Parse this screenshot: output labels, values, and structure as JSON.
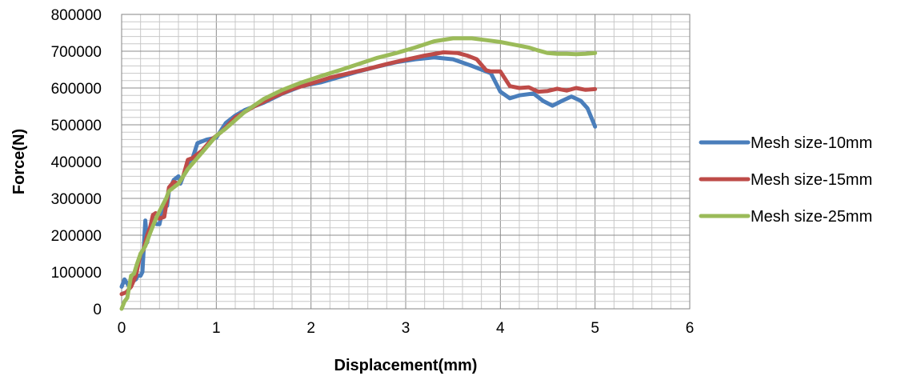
{
  "chart_data": {
    "type": "line",
    "xlabel": "Displacement(mm)",
    "ylabel": "Force(N)",
    "xlim": [
      0,
      6
    ],
    "ylim": [
      0,
      800000
    ],
    "x_ticks": [
      "0",
      "1",
      "2",
      "3",
      "4",
      "5",
      "6"
    ],
    "y_ticks": [
      "0",
      "100000",
      "200000",
      "300000",
      "400000",
      "500000",
      "600000",
      "700000",
      "800000"
    ],
    "grid": true,
    "legend": "right",
    "series": [
      {
        "name": "Mesh size-10mm",
        "color": "#4a7ebb",
        "x": [
          0,
          0.03,
          0.08,
          0.12,
          0.15,
          0.17,
          0.2,
          0.22,
          0.25,
          0.27,
          0.3,
          0.33,
          0.37,
          0.4,
          0.44,
          0.48,
          0.5,
          0.55,
          0.6,
          0.62,
          0.65,
          0.7,
          0.75,
          0.8,
          0.85,
          0.9,
          1.0,
          1.1,
          1.2,
          1.3,
          1.5,
          1.7,
          1.9,
          2.1,
          2.3,
          2.5,
          2.7,
          2.9,
          3.1,
          3.3,
          3.5,
          3.7,
          3.8,
          3.9,
          4.0,
          4.1,
          4.2,
          4.35,
          4.45,
          4.55,
          4.65,
          4.75,
          4.85,
          4.92,
          5.0
        ],
        "y": [
          60000,
          80000,
          60000,
          75000,
          80000,
          90000,
          90000,
          100000,
          240000,
          180000,
          220000,
          240000,
          230000,
          230000,
          280000,
          280000,
          320000,
          350000,
          360000,
          340000,
          360000,
          380000,
          410000,
          450000,
          455000,
          460000,
          465000,
          505000,
          525000,
          540000,
          560000,
          585000,
          605000,
          615000,
          630000,
          645000,
          658000,
          670000,
          678000,
          683000,
          678000,
          660000,
          650000,
          640000,
          590000,
          572000,
          580000,
          585000,
          565000,
          552000,
          565000,
          577000,
          565000,
          545000,
          495000
        ]
      },
      {
        "name": "Mesh size-15mm",
        "color": "#be4b48",
        "x": [
          0,
          0.05,
          0.1,
          0.15,
          0.2,
          0.23,
          0.27,
          0.3,
          0.33,
          0.36,
          0.4,
          0.45,
          0.5,
          0.55,
          0.6,
          0.65,
          0.7,
          0.75,
          0.85,
          0.95,
          1.05,
          1.2,
          1.4,
          1.6,
          1.8,
          2.0,
          2.2,
          2.4,
          2.6,
          2.8,
          3.0,
          3.2,
          3.4,
          3.55,
          3.65,
          3.75,
          3.85,
          3.9,
          4.0,
          4.1,
          4.2,
          4.3,
          4.4,
          4.5,
          4.6,
          4.7,
          4.8,
          4.9,
          5.0
        ],
        "y": [
          40000,
          45000,
          60000,
          90000,
          150000,
          160000,
          200000,
          220000,
          255000,
          260000,
          245000,
          250000,
          330000,
          345000,
          340000,
          360000,
          405000,
          410000,
          430000,
          460000,
          480000,
          520000,
          550000,
          575000,
          597000,
          612000,
          628000,
          640000,
          652000,
          665000,
          677000,
          688000,
          697000,
          695000,
          688000,
          678000,
          648000,
          645000,
          645000,
          605000,
          600000,
          602000,
          590000,
          592000,
          598000,
          593000,
          600000,
          595000,
          597000
        ]
      },
      {
        "name": "Mesh size-25mm",
        "color": "#9bbb59",
        "x": [
          0,
          0.03,
          0.06,
          0.1,
          0.13,
          0.16,
          0.2,
          0.25,
          0.3,
          0.33,
          0.37,
          0.42,
          0.47,
          0.5,
          0.55,
          0.6,
          0.65,
          0.7,
          0.8,
          0.9,
          1.0,
          1.1,
          1.3,
          1.5,
          1.7,
          1.9,
          2.1,
          2.3,
          2.5,
          2.7,
          2.9,
          3.1,
          3.3,
          3.5,
          3.7,
          3.85,
          4.0,
          4.1,
          4.2,
          4.3,
          4.4,
          4.5,
          4.6,
          4.7,
          4.8,
          4.9,
          5.0
        ],
        "y": [
          0,
          20000,
          30000,
          90000,
          95000,
          120000,
          150000,
          170000,
          205000,
          225000,
          250000,
          275000,
          300000,
          320000,
          330000,
          340000,
          360000,
          380000,
          410000,
          440000,
          470000,
          490000,
          535000,
          570000,
          595000,
          615000,
          632000,
          648000,
          665000,
          682000,
          695000,
          710000,
          727000,
          735000,
          735000,
          730000,
          725000,
          720000,
          715000,
          710000,
          702000,
          695000,
          693000,
          693000,
          692000,
          693000,
          695000
        ]
      }
    ]
  }
}
